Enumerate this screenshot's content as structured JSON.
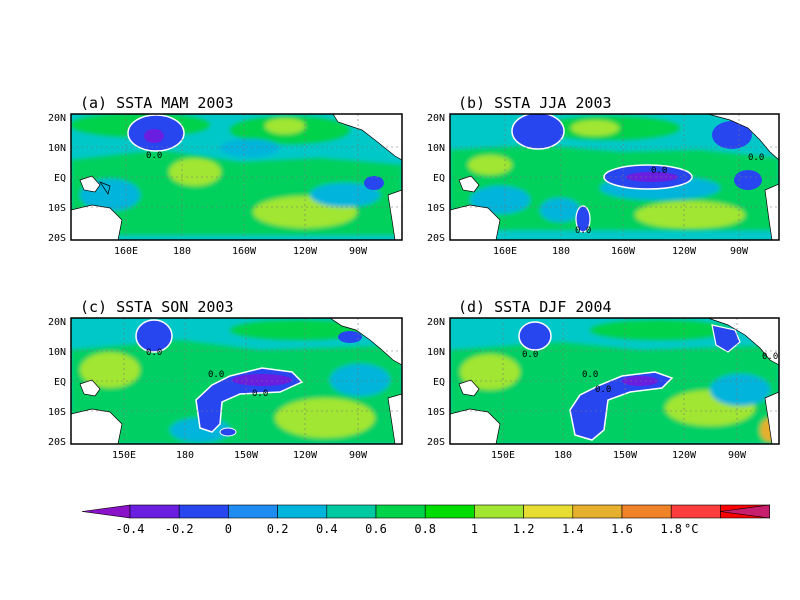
{
  "panels": [
    {
      "title": "(a) SSTA MAM 2003",
      "contour_labels": [
        "0.0"
      ]
    },
    {
      "title": "(b) SSTA JJA 2003",
      "contour_labels": [
        "0.0",
        "0.0",
        "0.0"
      ]
    },
    {
      "title": "(c) SSTA SON 2003",
      "contour_labels": [
        "0.0",
        "0.0",
        "0.0"
      ]
    },
    {
      "title": "(d) SSTA DJF 2004",
      "contour_labels": [
        "0.0",
        "0.0",
        "0.0",
        "0.0"
      ]
    }
  ],
  "y_ticks": [
    "20N",
    "10N",
    "EQ",
    "10S",
    "20S"
  ],
  "x_ticks_top": [
    "160E",
    "180",
    "160W",
    "120W",
    "90W"
  ],
  "x_ticks_bottom": [
    "150E",
    "180",
    "150W",
    "120W",
    "90W"
  ],
  "colorbar": {
    "labels": [
      "-0.4",
      "-0.2",
      "0",
      "0.2",
      "0.4",
      "0.6",
      "0.8",
      "1",
      "1.2",
      "1.4",
      "1.6",
      "1.8"
    ],
    "unit": "°C",
    "colors": [
      "#8a12c8",
      "#6a1fe0",
      "#2846f0",
      "#1e8cf0",
      "#00b4dc",
      "#00c8a0",
      "#00d24a",
      "#00dc00",
      "#a0e632",
      "#e6dc32",
      "#e6af2d",
      "#f08228",
      "#fa3c3c",
      "#fa0000",
      "#c81e6e"
    ]
  },
  "field_colors": {
    "ocean_base": "#00c8c8",
    "band_green": "#00d24a",
    "light_green": "#a0e632",
    "cyan_light": "#00b4dc",
    "blue": "#2846f0",
    "purple": "#6a1fe0",
    "land": "#ffffff"
  }
}
